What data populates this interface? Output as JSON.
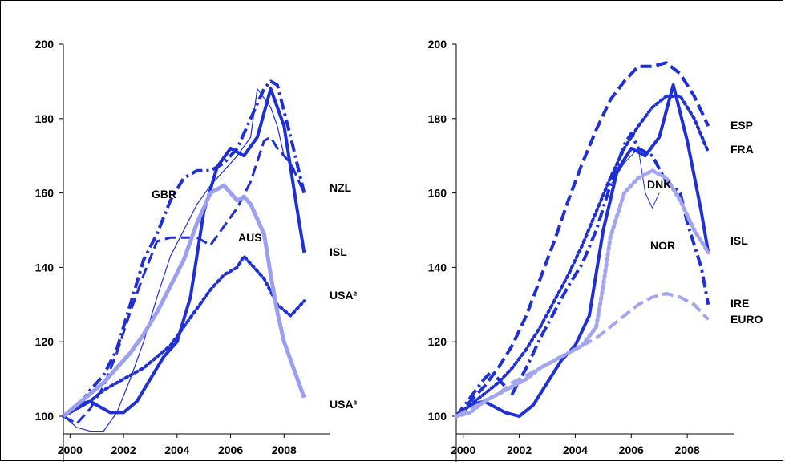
{
  "chart_data": [
    {
      "type": "line",
      "title": "",
      "xlabel": "",
      "ylabel": "",
      "xlim": [
        1999.75,
        2009.4
      ],
      "ylim": [
        95,
        200
      ],
      "yticks": [
        100,
        120,
        140,
        160,
        180,
        200
      ],
      "xticks": [
        2000,
        2002,
        2004,
        2006,
        2008
      ],
      "grid": false,
      "series": [
        {
          "name": "NZL",
          "color": "#1f2fd6",
          "style": "dashdot",
          "width": 4,
          "x": [
            1999.75,
            2000.25,
            2000.75,
            2001.25,
            2001.75,
            2002.25,
            2002.75,
            2003.25,
            2003.75,
            2004.25,
            2004.75,
            2005.25,
            2005.75,
            2006.25,
            2006.75,
            2007.25,
            2007.5,
            2007.75,
            2008.25,
            2008.75
          ],
          "y": [
            100,
            102,
            107,
            111,
            118,
            130,
            142,
            149,
            158,
            164,
            166,
            166,
            168,
            172,
            180,
            188,
            190,
            189,
            175,
            160
          ]
        },
        {
          "name": "GBR",
          "color": "#1f2fd6",
          "style": "dashed",
          "width": 3,
          "x": [
            1999.75,
            2000.25,
            2000.75,
            2001.25,
            2001.75,
            2002.25,
            2002.75,
            2003.25,
            2003.75,
            2004.25,
            2004.75,
            2005.25,
            2005.75,
            2006.25,
            2006.75,
            2007.25,
            2007.5,
            2007.75,
            2008.25,
            2008.75
          ],
          "y": [
            100,
            98,
            102,
            108,
            117,
            128,
            138,
            147,
            148,
            148,
            148,
            146,
            151,
            156,
            163,
            174,
            175,
            172,
            168,
            160
          ]
        },
        {
          "name": "ISL",
          "color": "#1f2fd6",
          "style": "solid",
          "width": 4,
          "x": [
            1999.75,
            2000.25,
            2000.75,
            2001.0,
            2001.5,
            2002.0,
            2002.5,
            2003.0,
            2003.5,
            2004.0,
            2004.5,
            2005.0,
            2005.5,
            2006.0,
            2006.5,
            2007.0,
            2007.5,
            2008.0,
            2008.5,
            2008.75
          ],
          "y": [
            100,
            103,
            104,
            103,
            101,
            101,
            104,
            110,
            116,
            120,
            132,
            155,
            167,
            172,
            170,
            175,
            188,
            178,
            155,
            144
          ]
        },
        {
          "name": "",
          "color": "#1f2fd6",
          "style": "thin",
          "width": 1.2,
          "x": [
            1999.75,
            2000.25,
            2000.75,
            2001.25,
            2001.75,
            2002.25,
            2002.75,
            2003.25,
            2003.75,
            2004.25,
            2004.75,
            2005.25,
            2005.75,
            2006.25,
            2006.75,
            2007.0,
            2007.5,
            2007.75,
            2008.0
          ],
          "y": [
            100,
            97,
            96,
            96,
            101,
            110,
            120,
            132,
            143,
            150,
            157,
            162,
            166,
            170,
            175,
            188,
            183,
            178,
            170
          ]
        },
        {
          "name": "USA²",
          "color": "#1f2fd6",
          "style": "dotted",
          "width": 4,
          "x": [
            1999.75,
            2000.25,
            2000.75,
            2001.25,
            2001.75,
            2002.25,
            2002.75,
            2003.25,
            2003.75,
            2004.25,
            2004.75,
            2005.25,
            2005.75,
            2006.25,
            2006.5,
            2006.75,
            2007.25,
            2007.75,
            2008.25,
            2008.75
          ],
          "y": [
            100,
            102,
            104,
            107,
            109,
            111,
            113,
            116,
            119,
            124,
            129,
            134,
            138,
            140,
            143,
            141,
            137,
            130,
            127,
            131
          ]
        },
        {
          "name": "AUS",
          "color": "#9b9ff2",
          "style": "solid",
          "width": 5,
          "x": [
            1999.75,
            2000.25,
            2000.75,
            2001.25,
            2001.75,
            2002.25,
            2002.75,
            2003.25,
            2003.75,
            2004.25,
            2004.75,
            2005.25,
            2005.75,
            2006.25,
            2006.5,
            2006.75,
            2007.0,
            2007.25,
            2007.5,
            2007.75,
            2008.0,
            2008.5,
            2008.75
          ],
          "y": [
            100,
            103,
            106,
            109,
            113,
            117,
            122,
            128,
            135,
            142,
            152,
            160,
            162,
            158,
            159,
            157,
            153,
            149,
            138,
            128,
            120,
            110,
            105
          ]
        }
      ],
      "labels": [
        {
          "text": "GBR"
        },
        {
          "text": "NZL"
        },
        {
          "text": "AUS"
        },
        {
          "text": "ISL"
        },
        {
          "text": "USA²"
        },
        {
          "text": "USA³"
        }
      ]
    },
    {
      "type": "line",
      "title": "",
      "xlabel": "",
      "ylabel": "",
      "xlim": [
        1999.75,
        2009.4
      ],
      "ylim": [
        95,
        200
      ],
      "yticks": [
        100,
        120,
        140,
        160,
        180,
        200
      ],
      "xticks": [
        2000,
        2002,
        2004,
        2006,
        2008
      ],
      "grid": false,
      "series": [
        {
          "name": "ESP",
          "color": "#1f2fd6",
          "style": "dashed",
          "width": 4,
          "x": [
            1999.75,
            2000.25,
            2000.75,
            2001.25,
            2001.75,
            2002.25,
            2002.75,
            2003.25,
            2003.75,
            2004.25,
            2004.75,
            2005.25,
            2005.75,
            2006.25,
            2006.75,
            2007.25,
            2007.75,
            2008.25,
            2008.75
          ],
          "y": [
            100,
            104,
            108,
            113,
            119,
            127,
            137,
            147,
            158,
            168,
            177,
            185,
            190,
            194,
            194,
            195,
            192,
            186,
            178
          ]
        },
        {
          "name": "FRA",
          "color": "#1f2fd6",
          "style": "dotted",
          "width": 4,
          "x": [
            1999.75,
            2000.25,
            2000.75,
            2001.25,
            2001.75,
            2002.25,
            2002.75,
            2003.25,
            2003.75,
            2004.25,
            2004.75,
            2005.25,
            2005.75,
            2006.25,
            2006.75,
            2007.25,
            2007.75,
            2008.25,
            2008.75
          ],
          "y": [
            100,
            103,
            106,
            109,
            113,
            118,
            124,
            131,
            138,
            146,
            155,
            164,
            172,
            178,
            183,
            186,
            186,
            180,
            171
          ]
        },
        {
          "name": "DNK",
          "color": "#1f2fd6",
          "style": "dashdot",
          "width": 4,
          "x": [
            1999.75,
            2000.25,
            2000.75,
            2001.0,
            2001.25,
            2001.75,
            2002.25,
            2002.75,
            2003.25,
            2003.75,
            2004.25,
            2004.75,
            2005.25,
            2005.75,
            2006.0,
            2006.25,
            2006.75,
            2007.25,
            2007.75,
            2008.0,
            2008.5,
            2008.75
          ],
          "y": [
            100,
            105,
            110,
            112,
            110,
            106,
            113,
            121,
            128,
            135,
            141,
            150,
            162,
            173,
            176,
            172,
            170,
            163,
            160,
            152,
            140,
            130
          ]
        },
        {
          "name": "ISL",
          "color": "#1f2fd6",
          "style": "solid",
          "width": 4,
          "x": [
            1999.75,
            2000.25,
            2000.75,
            2001.0,
            2001.5,
            2002.0,
            2002.5,
            2003.0,
            2003.5,
            2004.0,
            2004.5,
            2005.0,
            2005.5,
            2006.0,
            2006.5,
            2007.0,
            2007.5,
            2008.0,
            2008.5,
            2008.75
          ],
          "y": [
            100,
            103,
            104,
            103,
            101,
            100,
            103,
            109,
            115,
            119,
            127,
            150,
            166,
            172,
            170,
            175,
            189,
            174,
            155,
            144
          ]
        },
        {
          "name": "",
          "color": "#1f2fd6",
          "style": "thin",
          "width": 1,
          "x": [
            2005.25,
            2005.75,
            2006.25,
            2006.5,
            2006.75,
            2007.0
          ],
          "y": [
            162,
            168,
            172,
            160,
            156,
            160
          ]
        },
        {
          "name": "NOR",
          "color": "#a3a6ee",
          "style": "dotted",
          "width": 5,
          "x": [
            1999.75,
            2000.25,
            2000.75,
            2001.25,
            2001.75,
            2002.25,
            2002.75,
            2003.25,
            2003.75,
            2004.25,
            2004.75,
            2005.0,
            2005.25,
            2005.75,
            2006.25,
            2006.75,
            2007.25,
            2007.75,
            2008.25,
            2008.75
          ],
          "y": [
            100,
            101,
            104,
            106,
            108,
            110,
            113,
            115,
            117,
            119,
            124,
            135,
            148,
            160,
            164,
            166,
            164,
            158,
            150,
            144
          ]
        },
        {
          "name": "IRE",
          "color": "#a3a6ee",
          "style": "dashed",
          "width": 4,
          "x": [
            1999.75,
            2000.25,
            2000.75,
            2001.25,
            2001.75,
            2002.25,
            2002.75,
            2003.25,
            2003.75,
            2004.25,
            2004.75,
            2005.25,
            2005.75,
            2006.25,
            2006.75,
            2007.25,
            2007.75,
            2008.25,
            2008.75
          ],
          "y": [
            100,
            102,
            104,
            106,
            109,
            111,
            113,
            115,
            117,
            119,
            121,
            124,
            127,
            130,
            132,
            133,
            132,
            130,
            126
          ]
        }
      ],
      "labels": [
        {
          "text": "ESP"
        },
        {
          "text": "FRA"
        },
        {
          "text": "DNK"
        },
        {
          "text": "NOR"
        },
        {
          "text": "ISL"
        },
        {
          "text": "IRE"
        },
        {
          "text": "EURO"
        }
      ]
    }
  ]
}
